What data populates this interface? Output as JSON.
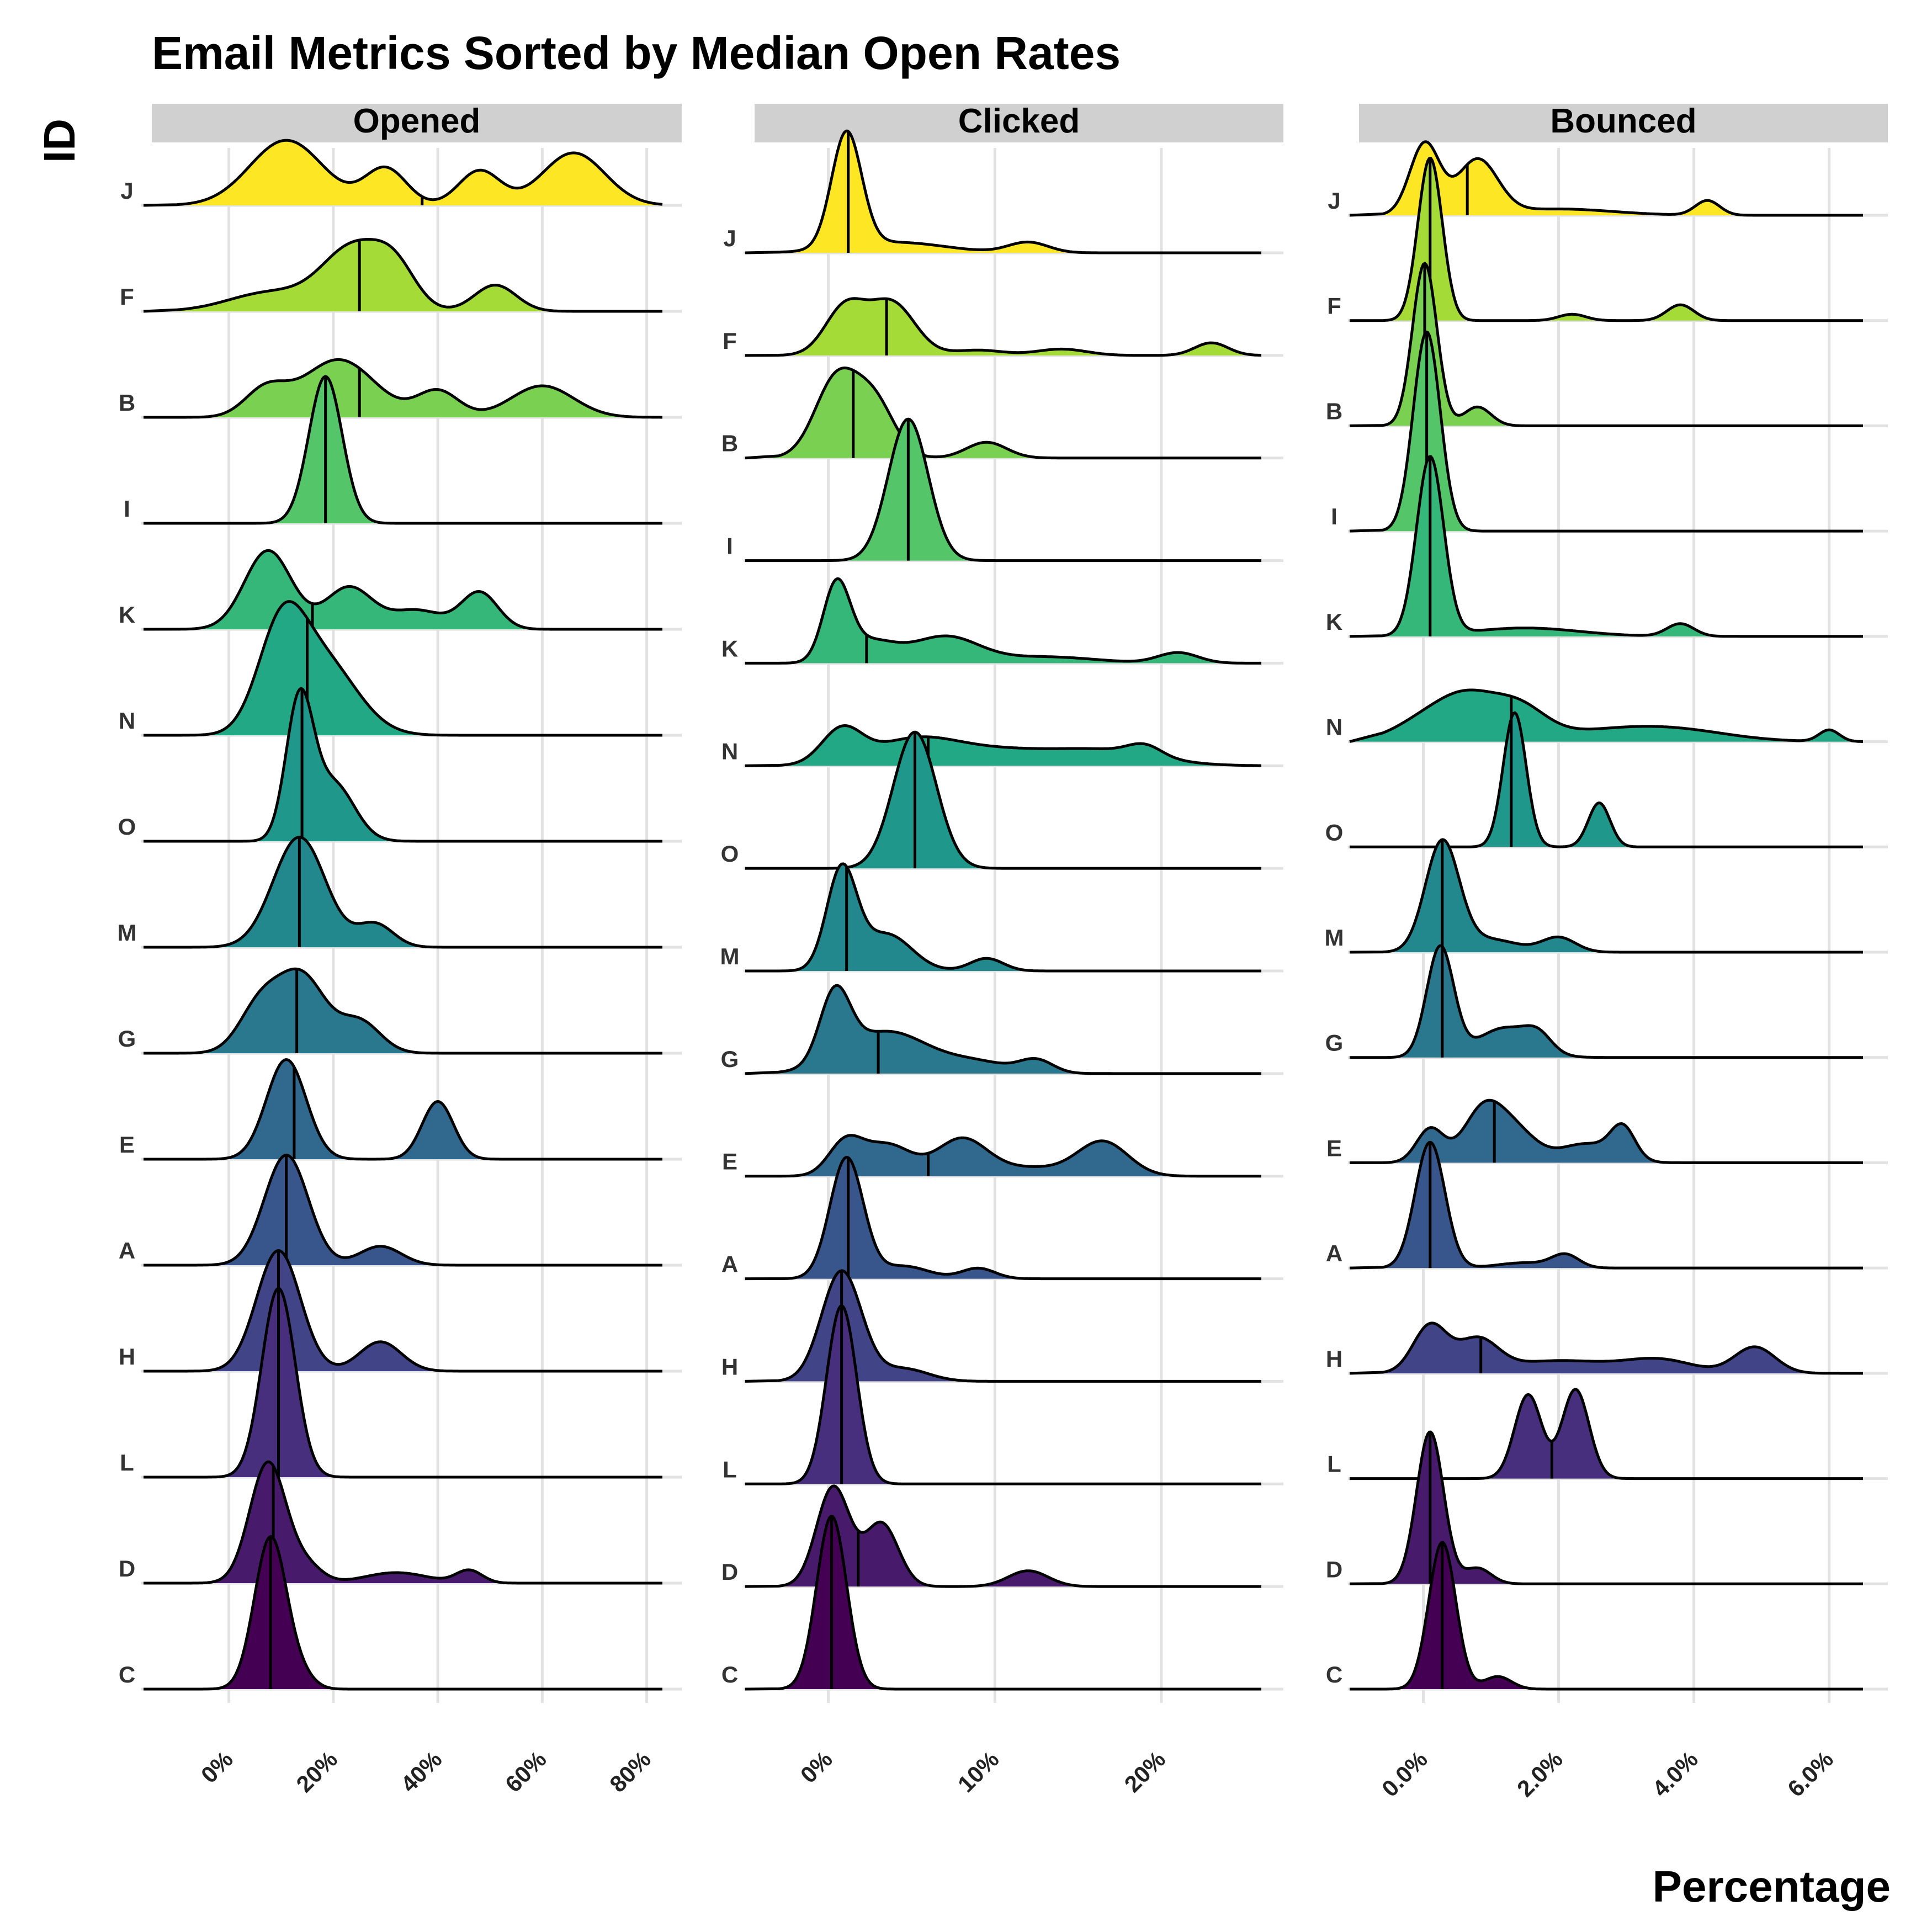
{
  "chart_data": {
    "type": "ridgeline",
    "title": "Email Metrics Sorted by Median Open Rates",
    "xlabel": "Percentage",
    "ylabel": "ID",
    "grid": true,
    "legend": "none",
    "fill_scale": "viridis",
    "row_order_bottom_to_top": [
      "C",
      "D",
      "L",
      "H",
      "A",
      "E",
      "G",
      "M",
      "O",
      "N",
      "K",
      "I",
      "B",
      "F",
      "J"
    ],
    "row_colors": {
      "C": "#440154",
      "D": "#481a6c",
      "L": "#472f7d",
      "H": "#414487",
      "A": "#39568c",
      "E": "#31688e",
      "G": "#2a788e",
      "M": "#23888e",
      "O": "#1f988b",
      "N": "#22a884",
      "K": "#35b779",
      "I": "#54c568",
      "B": "#7ad151",
      "F": "#a5db36",
      "J": "#fde725"
    },
    "panels": [
      {
        "name": "Opened",
        "xlim": [
          -10,
          83
        ],
        "x_ticks": [
          0,
          20,
          40,
          60,
          80
        ],
        "x_tick_labels": [
          "0%",
          "20%",
          "40%",
          "60%",
          "80%"
        ],
        "series": [
          {
            "id": "J",
            "median": 37,
            "peaks": [
              [
                11,
                7,
                0.62
              ],
              [
                30,
                4,
                0.35
              ],
              [
                48,
                4,
                0.33
              ],
              [
                66,
                6,
                0.5
              ]
            ]
          },
          {
            "id": "F",
            "median": 25,
            "peaks": [
              [
                8,
                8,
                0.18
              ],
              [
                24,
                6,
                0.6
              ],
              [
                32,
                4,
                0.32
              ],
              [
                51,
                4,
                0.25
              ]
            ]
          },
          {
            "id": "B",
            "median": 25,
            "peaks": [
              [
                7,
                4,
                0.25
              ],
              [
                21,
                7,
                0.55
              ],
              [
                40,
                4,
                0.25
              ],
              [
                60,
                6,
                0.3
              ]
            ]
          },
          {
            "id": "I",
            "median": 18.5,
            "peaks": [
              [
                18.5,
                3.2,
                1.4
              ]
            ]
          },
          {
            "id": "K",
            "median": 16,
            "peaks": [
              [
                7.5,
                4.5,
                0.75
              ],
              [
                23,
                4.5,
                0.4
              ],
              [
                36,
                5,
                0.18
              ],
              [
                48,
                3.5,
                0.35
              ]
            ]
          },
          {
            "id": "N",
            "median": 15,
            "peaks": [
              [
                10,
                4.5,
                0.9
              ],
              [
                18,
                6.5,
                0.7
              ]
            ]
          },
          {
            "id": "O",
            "median": 14,
            "peaks": [
              [
                13.5,
                2.6,
                1.3
              ],
              [
                20,
                4,
                0.55
              ]
            ]
          },
          {
            "id": "M",
            "median": 13.5,
            "peaks": [
              [
                13.5,
                5,
                1.05
              ],
              [
                28,
                3.5,
                0.22
              ]
            ]
          },
          {
            "id": "G",
            "median": 13,
            "peaks": [
              [
                6,
                4,
                0.45
              ],
              [
                14,
                4.5,
                0.72
              ],
              [
                25,
                4,
                0.3
              ]
            ]
          },
          {
            "id": "E",
            "median": 12.5,
            "peaks": [
              [
                11,
                3.8,
                0.95
              ],
              [
                40,
                3,
                0.55
              ]
            ]
          },
          {
            "id": "A",
            "median": 11,
            "peaks": [
              [
                11,
                4.2,
                1.05
              ],
              [
                29,
                4,
                0.18
              ]
            ]
          },
          {
            "id": "H",
            "median": 9.5,
            "peaks": [
              [
                9.5,
                4.2,
                1.15
              ],
              [
                29,
                4,
                0.28
              ]
            ]
          },
          {
            "id": "L",
            "median": 9.5,
            "peaks": [
              [
                9.5,
                3.2,
                1.8
              ]
            ]
          },
          {
            "id": "D",
            "median": 8.5,
            "peaks": [
              [
                7.5,
                3.5,
                1.15
              ],
              [
                15,
                3,
                0.15
              ],
              [
                32,
                6,
                0.1
              ],
              [
                46,
                2.5,
                0.12
              ]
            ]
          },
          {
            "id": "C",
            "median": 8,
            "peaks": [
              [
                8,
                3.1,
                1.45
              ],
              [
                14,
                2.5,
                0.1
              ]
            ]
          }
        ]
      },
      {
        "name": "Clicked",
        "xlim": [
          -3,
          26
        ],
        "x_ticks": [
          0,
          10,
          20
        ],
        "x_tick_labels": [
          "0%",
          "10%",
          "20%"
        ],
        "series": [
          {
            "id": "J",
            "median": 1.2,
            "peaks": [
              [
                1.1,
                0.9,
                1.1
              ],
              [
                4,
                3,
                0.1
              ],
              [
                12,
                1.2,
                0.1
              ]
            ]
          },
          {
            "id": "F",
            "median": 3.5,
            "peaks": [
              [
                1,
                1.2,
                0.45
              ],
              [
                3.8,
                1.4,
                0.5
              ],
              [
                9,
                1.5,
                0.05
              ],
              [
                14,
                1.5,
                0.06
              ],
              [
                23,
                1,
                0.12
              ]
            ]
          },
          {
            "id": "B",
            "median": 1.5,
            "peaks": [
              [
                0.5,
                1.3,
                0.75
              ],
              [
                2.8,
                1.2,
                0.5
              ],
              [
                9.5,
                1.2,
                0.15
              ]
            ]
          },
          {
            "id": "I",
            "median": 4.8,
            "peaks": [
              [
                4.8,
                1.2,
                1.35
              ]
            ]
          },
          {
            "id": "K",
            "median": 2.3,
            "peaks": [
              [
                0.5,
                0.8,
                0.72
              ],
              [
                2.5,
                1.5,
                0.2
              ],
              [
                7,
                2,
                0.25
              ],
              [
                13,
                3,
                0.06
              ],
              [
                21,
                1.2,
                0.1
              ]
            ]
          },
          {
            "id": "N",
            "median": 6,
            "peaks": [
              [
                0.8,
                1.2,
                0.32
              ],
              [
                5,
                2.5,
                0.2
              ],
              [
                10,
                4,
                0.15
              ],
              [
                17,
                3,
                0.12
              ],
              [
                19,
                1,
                0.1
              ]
            ]
          },
          {
            "id": "O",
            "median": 5.2,
            "peaks": [
              [
                5.2,
                1.3,
                1.3
              ]
            ]
          },
          {
            "id": "M",
            "median": 1.1,
            "peaks": [
              [
                0.8,
                0.9,
                0.95
              ],
              [
                3.5,
                1.5,
                0.35
              ],
              [
                9.5,
                1,
                0.12
              ]
            ]
          },
          {
            "id": "G",
            "median": 3,
            "peaks": [
              [
                0.4,
                0.9,
                0.65
              ],
              [
                3.5,
                2.5,
                0.4
              ],
              [
                9,
                2,
                0.1
              ],
              [
                12.5,
                1,
                0.12
              ]
            ]
          },
          {
            "id": "E",
            "median": 6,
            "peaks": [
              [
                1,
                1,
                0.3
              ],
              [
                3.5,
                1.5,
                0.3
              ],
              [
                8,
                1.5,
                0.34
              ],
              [
                12,
                2.5,
                0.08
              ],
              [
                16.5,
                1.5,
                0.32
              ]
            ]
          },
          {
            "id": "A",
            "median": 1.2,
            "peaks": [
              [
                1.1,
                1,
                1.15
              ],
              [
                4.5,
                1.5,
                0.12
              ],
              [
                9,
                1,
                0.1
              ]
            ]
          },
          {
            "id": "H",
            "median": 0.8,
            "peaks": [
              [
                0.8,
                1.2,
                1.05
              ],
              [
                4.5,
                1.5,
                0.12
              ]
            ]
          },
          {
            "id": "L",
            "median": 0.8,
            "peaks": [
              [
                0.8,
                0.9,
                1.7
              ]
            ]
          },
          {
            "id": "D",
            "median": 1.8,
            "peaks": [
              [
                0.3,
                1,
                0.95
              ],
              [
                3.2,
                1,
                0.6
              ],
              [
                12,
                1.2,
                0.15
              ]
            ]
          },
          {
            "id": "C",
            "median": 0.2,
            "peaks": [
              [
                0.2,
                0.9,
                1.65
              ]
            ]
          }
        ]
      },
      {
        "name": "Bounced",
        "xlim": [
          -0.6,
          6.5
        ],
        "x_ticks": [
          0,
          2,
          4,
          6
        ],
        "x_tick_labels": [
          "0.0%",
          "2.0%",
          "4.0%",
          "6.0%"
        ],
        "series": [
          {
            "id": "J",
            "median": 0.65,
            "peaks": [
              [
                0.02,
                0.22,
                0.68
              ],
              [
                0.8,
                0.3,
                0.52
              ],
              [
                2,
                0.8,
                0.06
              ],
              [
                4.2,
                0.18,
                0.14
              ]
            ]
          },
          {
            "id": "F",
            "median": 0.1,
            "peaks": [
              [
                0.1,
                0.18,
                1.55
              ],
              [
                2.2,
                0.2,
                0.06
              ],
              [
                3.8,
                0.2,
                0.15
              ]
            ]
          },
          {
            "id": "B",
            "median": 0.02,
            "peaks": [
              [
                0.02,
                0.18,
                1.55
              ],
              [
                0.8,
                0.2,
                0.18
              ]
            ]
          },
          {
            "id": "I",
            "median": 0.05,
            "peaks": [
              [
                0.05,
                0.2,
                1.9
              ]
            ]
          },
          {
            "id": "K",
            "median": 0.1,
            "peaks": [
              [
                0.1,
                0.2,
                1.7
              ],
              [
                1.5,
                0.8,
                0.08
              ],
              [
                3.8,
                0.2,
                0.12
              ]
            ]
          },
          {
            "id": "N",
            "median": 1.3,
            "peaks": [
              [
                0.15,
                0.5,
                0.25
              ],
              [
                0.7,
                0.4,
                0.28
              ],
              [
                1.4,
                0.4,
                0.3
              ],
              [
                2.8,
                1,
                0.1
              ],
              [
                3.8,
                0.8,
                0.07
              ],
              [
                6,
                0.15,
                0.11
              ]
            ]
          },
          {
            "id": "O",
            "median": 1.3,
            "peaks": [
              [
                1.35,
                0.17,
                1.28
              ],
              [
                2.6,
                0.16,
                0.42
              ]
            ]
          },
          {
            "id": "M",
            "median": 0.28,
            "peaks": [
              [
                0.28,
                0.25,
                1.05
              ],
              [
                1,
                0.4,
                0.12
              ],
              [
                2,
                0.25,
                0.14
              ]
            ]
          },
          {
            "id": "G",
            "median": 0.28,
            "peaks": [
              [
                0.25,
                0.2,
                1.05
              ],
              [
                1.2,
                0.4,
                0.28
              ],
              [
                1.7,
                0.2,
                0.15
              ]
            ]
          },
          {
            "id": "E",
            "median": 1.05,
            "peaks": [
              [
                0.1,
                0.2,
                0.32
              ],
              [
                0.9,
                0.3,
                0.52
              ],
              [
                1.4,
                0.3,
                0.25
              ],
              [
                2.4,
                0.4,
                0.18
              ],
              [
                2.95,
                0.18,
                0.3
              ]
            ]
          },
          {
            "id": "A",
            "median": 0.1,
            "peaks": [
              [
                0.1,
                0.22,
                1.2
              ],
              [
                1.5,
                0.4,
                0.05
              ],
              [
                2.1,
                0.2,
                0.12
              ]
            ]
          },
          {
            "id": "H",
            "median": 0.85,
            "peaks": [
              [
                0.1,
                0.25,
                0.45
              ],
              [
                0.8,
                0.3,
                0.3
              ],
              [
                2,
                0.8,
                0.12
              ],
              [
                3.5,
                0.5,
                0.12
              ],
              [
                4.9,
                0.3,
                0.25
              ]
            ]
          },
          {
            "id": "L",
            "median": 1.9,
            "peaks": [
              [
                1.55,
                0.2,
                0.8
              ],
              [
                2.25,
                0.2,
                0.85
              ]
            ]
          },
          {
            "id": "D",
            "median": 0.1,
            "peaks": [
              [
                0.1,
                0.2,
                1.45
              ],
              [
                0.8,
                0.2,
                0.15
              ]
            ]
          },
          {
            "id": "C",
            "median": 0.28,
            "peaks": [
              [
                0.28,
                0.2,
                1.4
              ],
              [
                1.1,
                0.2,
                0.12
              ]
            ]
          }
        ]
      }
    ]
  }
}
